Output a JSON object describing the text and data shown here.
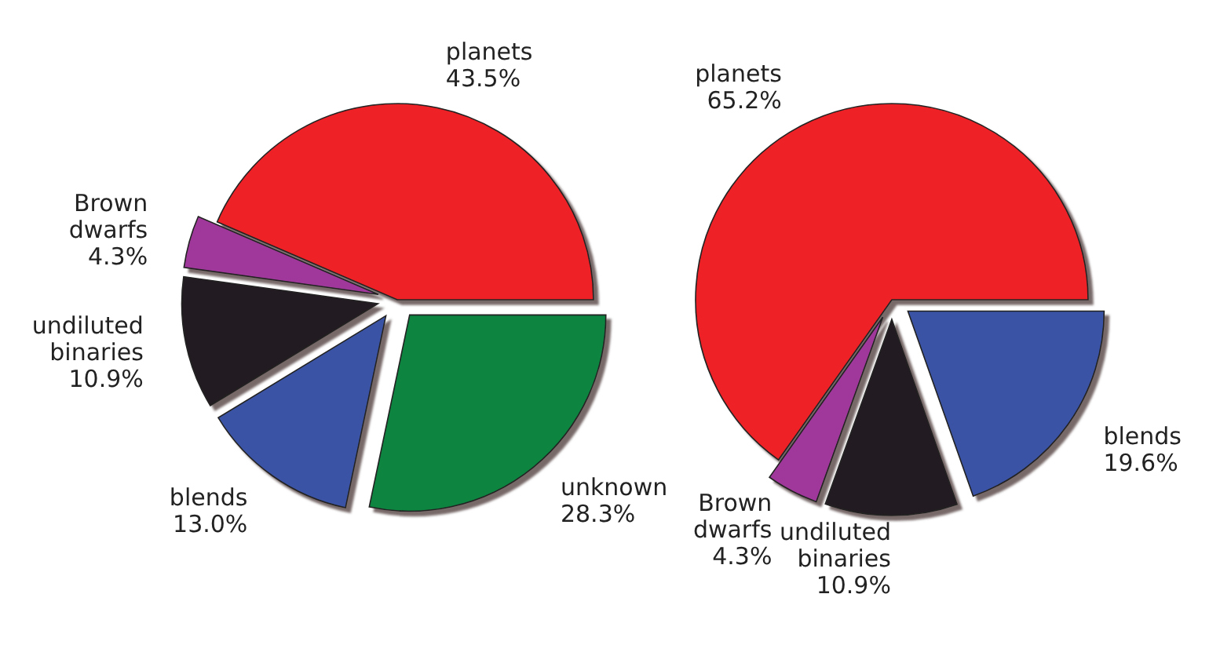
{
  "chart_data": [
    {
      "type": "pie",
      "categories": [
        "planets",
        "Brown dwarfs",
        "undiluted binaries",
        "blends",
        "unknown"
      ],
      "values": [
        43.5,
        4.3,
        10.9,
        13.0,
        28.3
      ],
      "value_labels": [
        "43.5%",
        "4.3%",
        "10.9%",
        "13.0%",
        "28.3%"
      ],
      "colors": [
        "#ee2026",
        "#a0399b",
        "#231f20",
        "#3a53a4",
        "#0c8440"
      ]
    },
    {
      "type": "pie",
      "categories": [
        "planets",
        "Brown dwarfs",
        "undiluted binaries",
        "blends"
      ],
      "values": [
        65.2,
        4.3,
        10.9,
        19.6
      ],
      "value_labels": [
        "65.2%",
        "4.3%",
        "10.9%",
        "19.6%"
      ],
      "colors": [
        "#ee2026",
        "#a0399b",
        "#231f20",
        "#3a53a4"
      ]
    }
  ]
}
